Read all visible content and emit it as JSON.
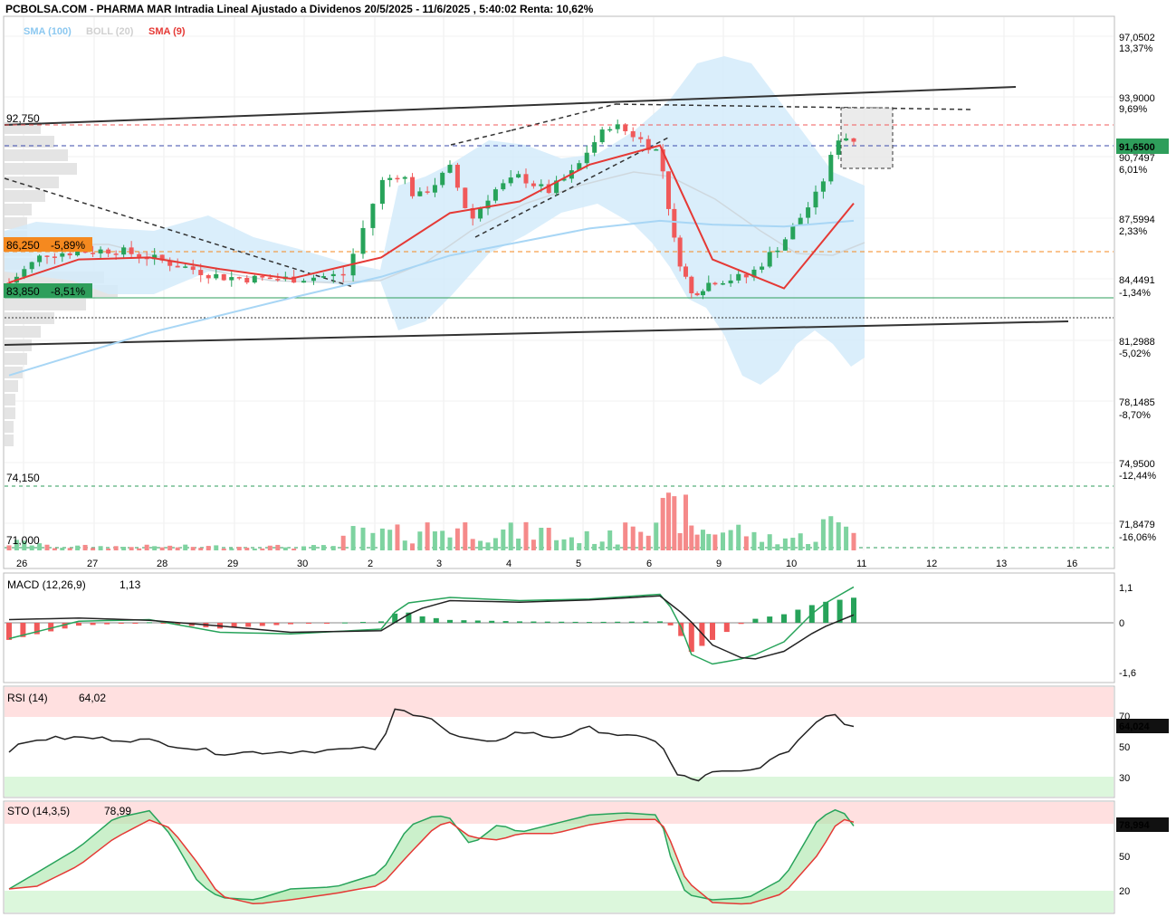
{
  "header": {
    "title": "PCBOLSA.COM - PHARMA MAR Intradia Lineal Ajustado a Dividenos 20/5/2025 - 11/6/2025 , 5:40:02 Renta: 10,62%",
    "legend": [
      {
        "text": "SMA (100)",
        "color": "#8cc8f0"
      },
      {
        "text": "BOLL (20)",
        "color": "#d0d0d0"
      },
      {
        "text": "SMA (9)",
        "color": "#e53935"
      }
    ]
  },
  "price_axis": {
    "labels": [
      {
        "price": "97,0502",
        "pct": "13,37%",
        "pct_color": "#2e9e5b"
      },
      {
        "price": "93,9000",
        "pct": "9,69%",
        "pct_color": "#2e9e5b"
      },
      {
        "price": "90,7497",
        "pct": "6,01%",
        "pct_color": "#2e9e5b"
      },
      {
        "price": "87,5994",
        "pct": "2,33%",
        "pct_color": "#2e9e5b"
      },
      {
        "price": "84,4491",
        "pct": "-1,34%",
        "pct_color": "#e53935"
      },
      {
        "price": "81,2988",
        "pct": "-5,02%",
        "pct_color": "#e53935"
      },
      {
        "price": "78,1485",
        "pct": "-8,70%",
        "pct_color": "#e53935"
      },
      {
        "price": "74,9500",
        "pct": "-12,44%",
        "pct_color": "#e53935"
      },
      {
        "price": "71,8479",
        "pct": "-16,06%",
        "pct_color": "#e53935"
      }
    ],
    "current_price": "91,6500"
  },
  "levels": {
    "top": "92,750",
    "orange": "86,250",
    "orange_pct": "-5,89%",
    "green": "83,850",
    "green_pct": "-8,51%",
    "low1": "74,150",
    "low2": "71,000"
  },
  "x_axis": {
    "labels": [
      "26",
      "27",
      "28",
      "29",
      "30",
      "2",
      "3",
      "4",
      "5",
      "6",
      "9",
      "10",
      "11",
      "12",
      "13",
      "16"
    ]
  },
  "panels": {
    "macd": {
      "label": "MACD (12,26,9)",
      "value": "1,13",
      "ticks": [
        "1,1",
        "0",
        "-1,6"
      ]
    },
    "rsi": {
      "label": "RSI (14)",
      "value": "64,02",
      "current": "64,024",
      "ticks": [
        "70",
        "50",
        "30"
      ]
    },
    "sto": {
      "label": "STO (14,3,5)",
      "value": "78,99",
      "current": "78,994",
      "ticks": [
        "50",
        "20"
      ]
    }
  },
  "colors": {
    "up": "#27a35a",
    "down": "#f0595a",
    "sma9": "#e53935",
    "sma100": "#a8d6f5",
    "boll_fill": "#d4ebfa",
    "current_price_bg": "#2e9e5b",
    "orange": "#f5891f"
  },
  "chart_data": {
    "type": "candlestick",
    "y_range": [
      71.0,
      97.05
    ],
    "days": [
      "26",
      "27",
      "28",
      "29",
      "30",
      "2",
      "3",
      "4",
      "5",
      "6",
      "9",
      "10",
      "11"
    ],
    "close_approx": [
      84.4,
      85.9,
      85.6,
      84.8,
      84.4,
      88.9,
      88.4,
      89.2,
      91.5,
      87.9,
      83.9,
      85.8,
      91.65
    ],
    "sma9_approx": [
      84.3,
      85.5,
      85.6,
      85.0,
      84.5,
      85.6,
      87.9,
      88.5,
      90.4,
      91.4,
      85.5,
      84.0,
      88.4
    ],
    "sma100_approx": [
      79.5,
      80.6,
      81.7,
      82.6,
      83.5,
      84.6,
      85.7,
      86.4,
      87.1,
      87.5,
      87.3,
      87.2,
      87.5
    ],
    "volume_rel": [
      0.2,
      0.1,
      0.1,
      0.1,
      0.1,
      0.45,
      0.6,
      0.5,
      0.35,
      1.0,
      0.55,
      0.35,
      0.7
    ],
    "macd": {
      "value": 1.13,
      "range": [
        -1.6,
        1.1
      ]
    },
    "rsi": {
      "value": 64.02,
      "overbought": 70,
      "oversold": 30
    },
    "sto": {
      "value": 78.99,
      "overbought": 80,
      "oversold": 20
    }
  }
}
